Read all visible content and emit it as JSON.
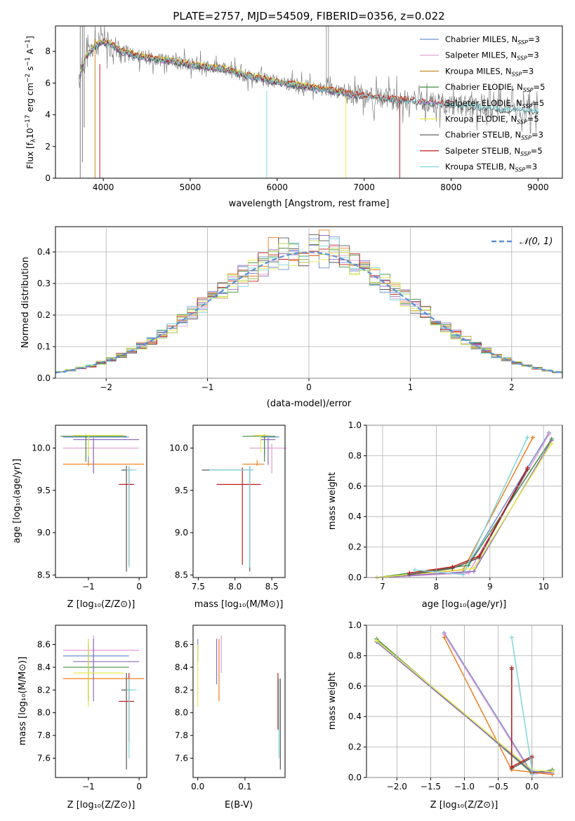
{
  "figure": {
    "title": "PLATE=2757, MJD=54509, FIBERID=0356, z=0.022"
  },
  "colors": {
    "chabrier_miles": "#6a8fd8",
    "salpeter_miles": "#e59ad3",
    "kroupa_miles": "#c98a2a",
    "chabrier_elodie": "#3e8f3e",
    "salpeter_elodie": "#8c6bbf",
    "kroupa_elodie": "#e8e84a",
    "chabrier_stelib": "#555555",
    "salpeter_stelib": "#c21d1d",
    "kroupa_stelib": "#7fd6dc",
    "normal": "#5b8fd9",
    "orange": "#ee7e1e",
    "green_light": "#bada55",
    "grid": "#b0b0b0"
  },
  "chart_data": [
    {
      "id": "spectrum",
      "type": "line",
      "xlabel": "wavelength [Angstrom, rest frame]",
      "xlim": [
        3450,
        9280
      ],
      "ylim": [
        0,
        9.6
      ],
      "xticks": [
        "4000",
        "5000",
        "6000",
        "7000",
        "8000",
        "9000"
      ],
      "yticks": [
        "0",
        "2",
        "4",
        "6",
        "8"
      ],
      "grid": false,
      "legend_position": "top-right",
      "legend": [
        {
          "key": "chabrier_miles",
          "label": "Chabrier MILES, N",
          "sub": "SSP",
          "tail": "=3"
        },
        {
          "key": "salpeter_miles",
          "label": "Salpeter MILES, N",
          "sub": "SSP",
          "tail": "=3"
        },
        {
          "key": "kroupa_miles",
          "label": "Kroupa MILES, N",
          "sub": "SSP",
          "tail": "=3"
        },
        {
          "key": "chabrier_elodie",
          "label": "Chabrier ELODIE, N",
          "sub": "SSP",
          "tail": "=5"
        },
        {
          "key": "salpeter_elodie",
          "label": "Salpeter ELODIE, N",
          "sub": "SSP",
          "tail": "=5"
        },
        {
          "key": "kroupa_elodie",
          "label": "Kroupa ELODIE, N",
          "sub": "SSP",
          "tail": "=5"
        },
        {
          "key": "chabrier_stelib",
          "label": "Chabrier STELIB, N",
          "sub": "SSP",
          "tail": "=3"
        },
        {
          "key": "salpeter_stelib",
          "label": "Salpeter STELIB, N",
          "sub": "SSP",
          "tail": "=5"
        },
        {
          "key": "kroupa_stelib",
          "label": "Kroupa STELIB, N",
          "sub": "SSP",
          "tail": "=3"
        }
      ],
      "continuum": {
        "x": [
          3720,
          3800,
          3900,
          4000,
          4100,
          4200,
          4400,
          4600,
          4800,
          5000,
          5200,
          5400,
          5600,
          5800,
          6000,
          6200,
          6400,
          6600,
          6800,
          7000,
          7200,
          7400,
          7600,
          7800,
          8000,
          8200,
          8400,
          8600,
          8800,
          9000
        ],
        "y": [
          6.3,
          7.6,
          8.3,
          8.6,
          8.4,
          8.0,
          7.7,
          7.5,
          7.35,
          7.15,
          7.0,
          6.85,
          6.55,
          6.3,
          6.05,
          5.9,
          5.7,
          5.55,
          5.35,
          5.2,
          5.05,
          4.95,
          4.85,
          4.75,
          4.65,
          4.55,
          4.45,
          4.35,
          4.3,
          4.25
        ]
      }
    },
    {
      "id": "residuals",
      "type": "line",
      "xlabel": "(data-model)/error",
      "ylabel": "Normed distribution",
      "xlim": [
        -2.5,
        2.5
      ],
      "ylim": [
        0,
        0.48
      ],
      "xticks": [
        "−2",
        "−1",
        "0",
        "1",
        "2"
      ],
      "yticks": [
        "0.0",
        "0.1",
        "0.2",
        "0.3",
        "0.4"
      ],
      "grid": true,
      "legend_position": "top-right",
      "legend_label": "𝒩(0, 1)",
      "normal": {
        "mu": 0,
        "sigma": 1
      }
    },
    {
      "id": "age_vs_Z",
      "type": "scatter",
      "xlabel": "Z [log₁₀(Z/Z⊙)]",
      "xlim": [
        -1.65,
        0.15
      ],
      "ylim": [
        8.47,
        10.27
      ],
      "xticks": [
        "−1",
        "0"
      ],
      "yticks": [
        "8.5",
        "9.0",
        "9.5",
        "10.0"
      ]
    },
    {
      "id": "age_vs_mass",
      "type": "scatter",
      "xlabel": "mass [log₁₀(M/M⊙)]",
      "xlim": [
        7.43,
        8.68
      ],
      "ylim": [
        8.47,
        10.27
      ],
      "xticks": [
        "7.5",
        "8.0",
        "8.5"
      ],
      "yticks": [
        "8.5",
        "9.0",
        "9.5",
        "10.0"
      ]
    },
    {
      "id": "weight_vs_age",
      "type": "line",
      "xlabel": "age  [log₁₀(age/yr)]",
      "ylabel": "mass weight",
      "xlim": [
        6.7,
        10.35
      ],
      "ylim": [
        0,
        1.0
      ],
      "xticks": [
        "7",
        "8",
        "9",
        "10"
      ],
      "yticks": [
        "0.0",
        "0.2",
        "0.4",
        "0.6",
        "0.8",
        "1.0"
      ],
      "grid": true
    },
    {
      "id": "mass_vs_Z",
      "type": "scatter",
      "xlabel": "Z [log₁₀(Z/Z⊙)]",
      "xlim": [
        -1.65,
        0.15
      ],
      "ylim": [
        7.43,
        8.77
      ],
      "xticks": [
        "−1",
        "0"
      ],
      "yticks": [
        "7.6",
        "7.8",
        "8.0",
        "8.2",
        "8.4",
        "8.6"
      ]
    },
    {
      "id": "mass_vs_ebv",
      "type": "scatter",
      "xlabel": "E(B-V)",
      "xlim": [
        -0.01,
        0.185
      ],
      "ylim": [
        7.43,
        8.77
      ],
      "xticks": [
        "0.0",
        "0.1"
      ],
      "yticks": [
        "7.6",
        "7.8",
        "8.0",
        "8.2",
        "8.4",
        "8.6"
      ]
    },
    {
      "id": "weight_vs_Z",
      "type": "line",
      "xlabel": "Z [log₁₀(Z/Z⊙)]",
      "ylabel": "mass weight",
      "xlim": [
        -2.45,
        0.45
      ],
      "ylim": [
        0,
        1.0
      ],
      "xticks": [
        "−2.0",
        "−1.5",
        "−1.0",
        "−0.5",
        "0.0"
      ],
      "yticks": [
        "0.0",
        "0.2",
        "0.4",
        "0.6",
        "0.8",
        "1.0"
      ],
      "grid": true
    }
  ],
  "labels": {
    "flux_ylabel_main": "Flux [f",
    "flux_ylabel_sub": "λ",
    "flux_ylabel_tail": "10",
    "flux_ylabel_exp": "−17",
    "flux_ylabel_units": " erg cm",
    "flux_ylabel_exp2": "−2",
    "flux_ylabel_s": " s",
    "flux_ylabel_exp3": "−1",
    "flux_ylabel_A": " A",
    "flux_ylabel_exp4": "−1",
    "flux_ylabel_close": "]",
    "age_ylabel": "age  [log₁₀(age/yr)]",
    "mass_ylabel": "mass [log₁₀(M/M⊙)]"
  }
}
